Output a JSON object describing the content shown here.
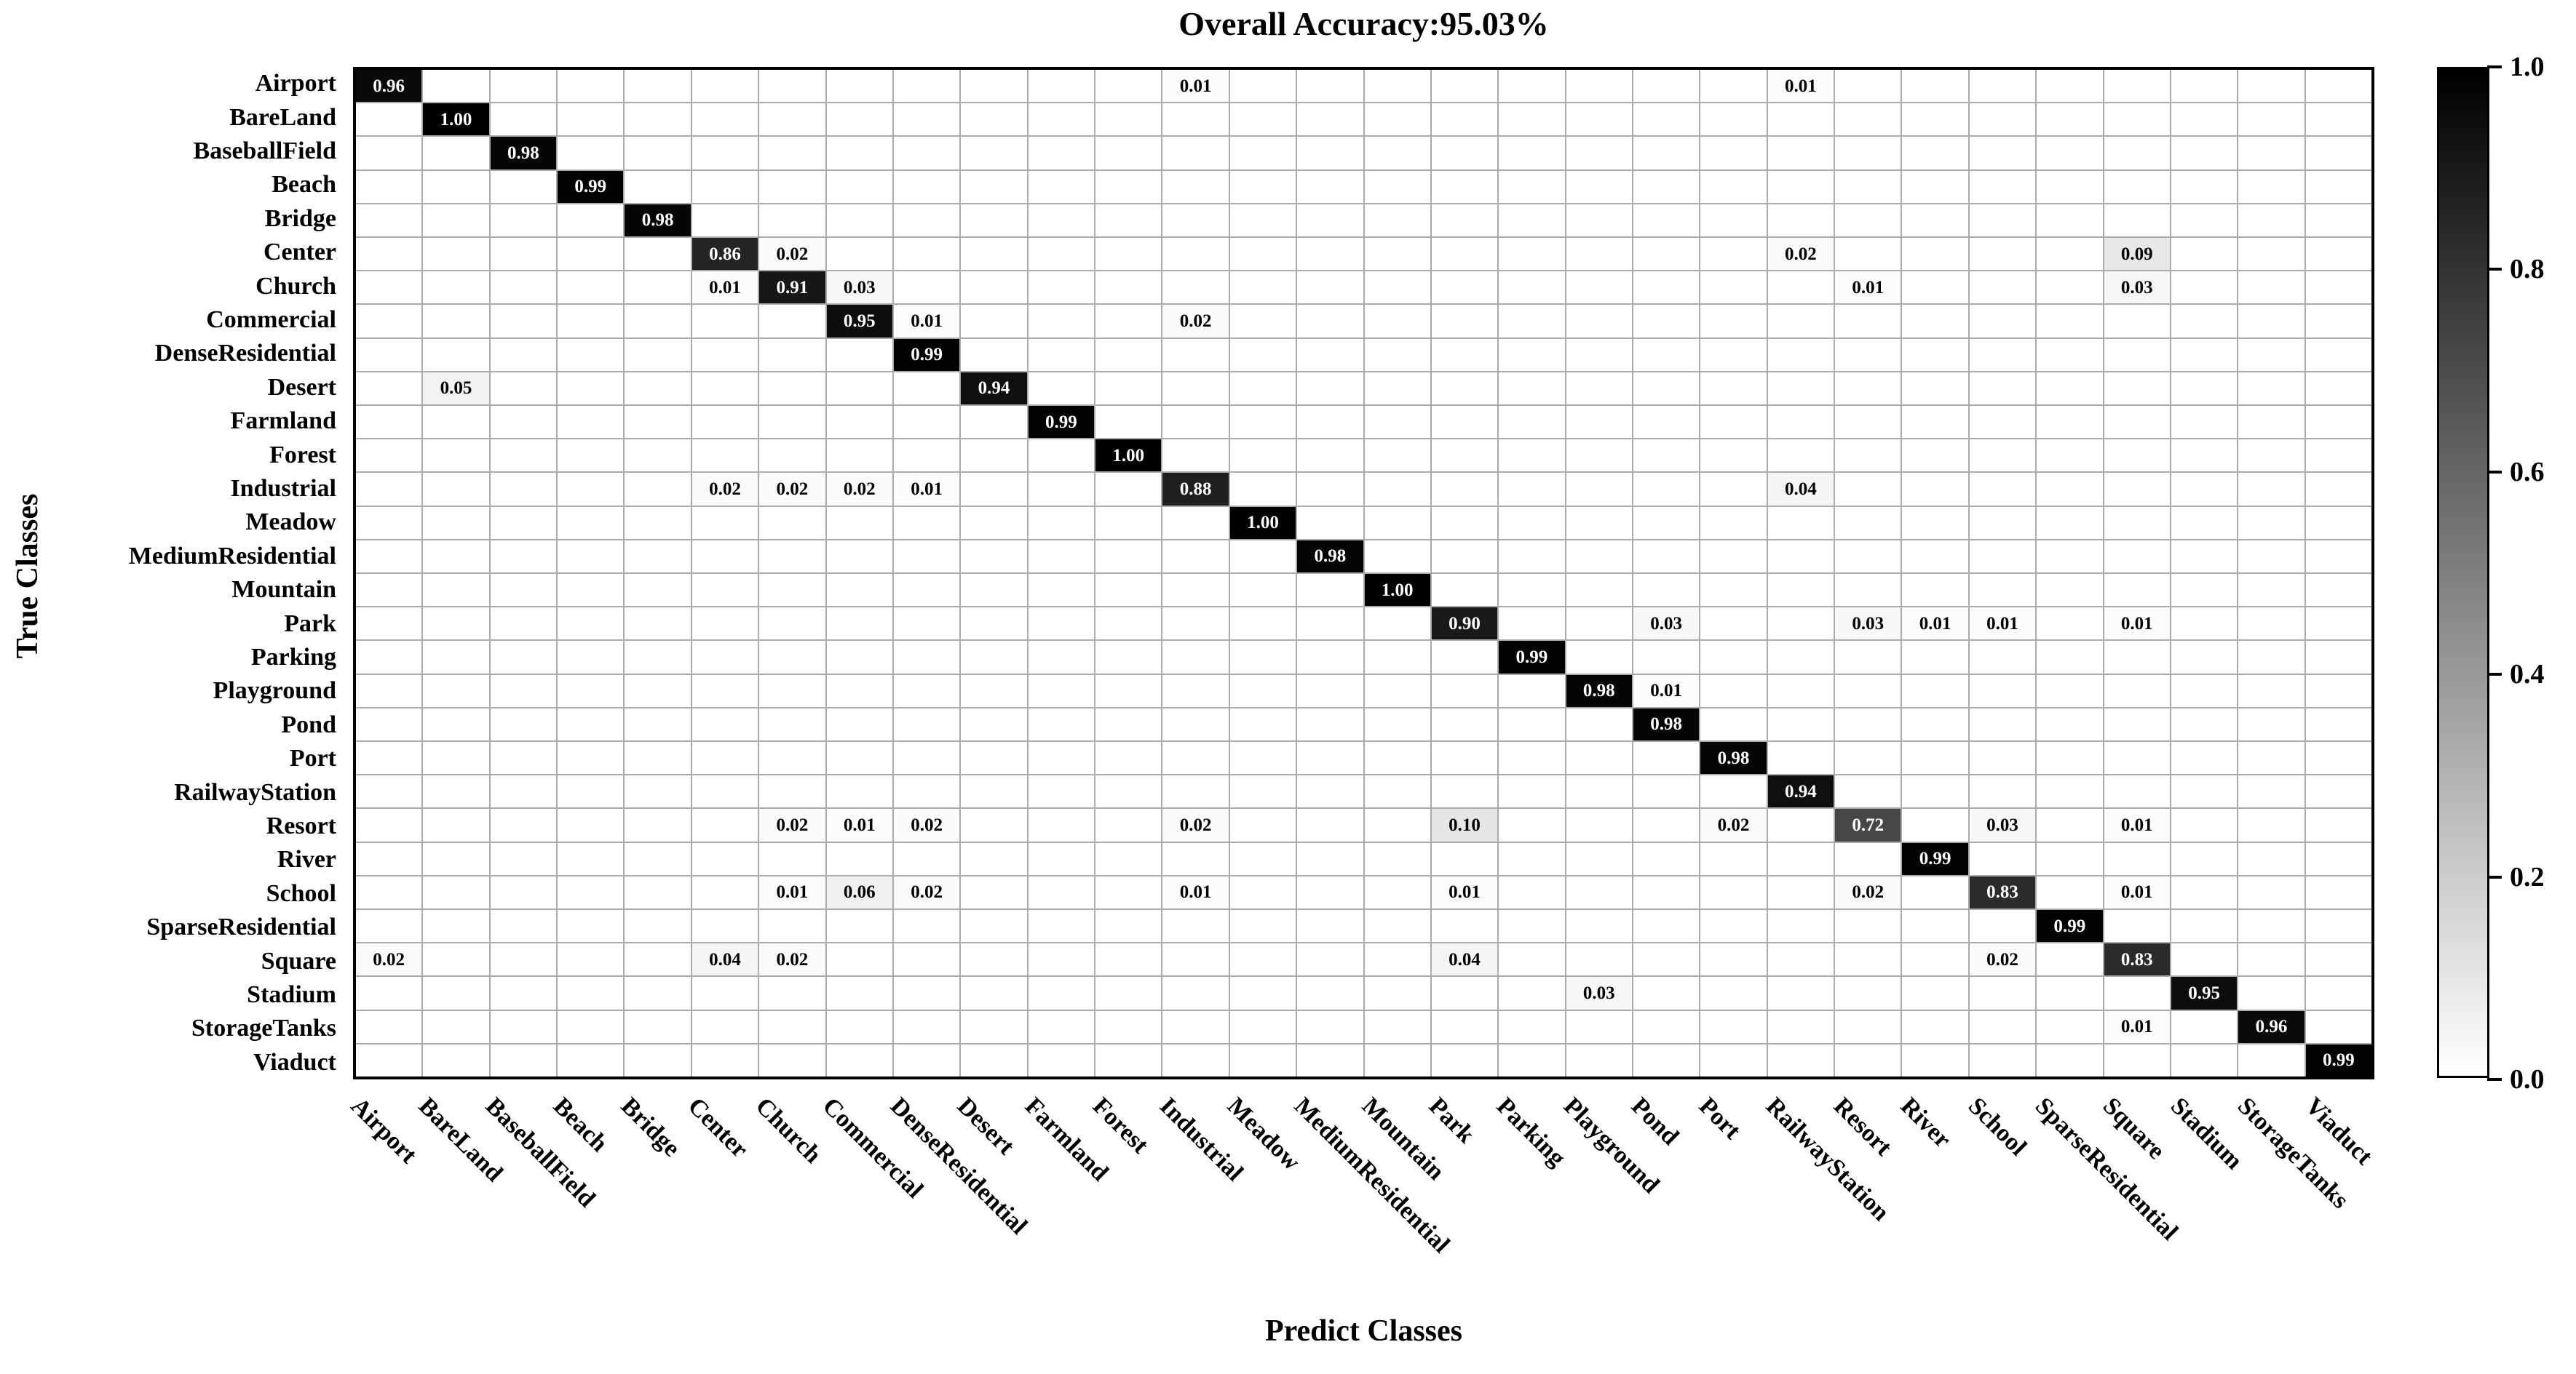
{
  "title": "Overall Accuracy:95.03%",
  "chart_data": {
    "type": "heatmap",
    "subtype": "confusion-matrix",
    "title": "Overall Accuracy:95.03%",
    "xlabel": "Predict Classes",
    "ylabel": "True Classes",
    "classes": [
      "Airport",
      "BareLand",
      "BaseballField",
      "Beach",
      "Bridge",
      "Center",
      "Church",
      "Commercial",
      "DenseResidential",
      "Desert",
      "Farmland",
      "Forest",
      "Industrial",
      "Meadow",
      "MediumResidential",
      "Mountain",
      "Park",
      "Parking",
      "Playground",
      "Pond",
      "Port",
      "RailwayStation",
      "Resort",
      "River",
      "School",
      "SparseResidential",
      "Square",
      "Stadium",
      "StorageTanks",
      "Viaduct"
    ],
    "value_range": [
      0.0,
      1.0
    ],
    "grid": true,
    "legend_position": "right-colorbar",
    "cells": [
      [
        0,
        0,
        "0.96"
      ],
      [
        0,
        12,
        "0.01"
      ],
      [
        0,
        21,
        "0.01"
      ],
      [
        1,
        1,
        "1.00"
      ],
      [
        2,
        2,
        "0.98"
      ],
      [
        3,
        3,
        "0.99"
      ],
      [
        4,
        4,
        "0.98"
      ],
      [
        5,
        5,
        "0.86"
      ],
      [
        5,
        6,
        "0.02"
      ],
      [
        5,
        21,
        "0.02"
      ],
      [
        5,
        26,
        "0.09"
      ],
      [
        6,
        5,
        "0.01"
      ],
      [
        6,
        6,
        "0.91"
      ],
      [
        6,
        7,
        "0.03"
      ],
      [
        6,
        22,
        "0.01"
      ],
      [
        6,
        26,
        "0.03"
      ],
      [
        7,
        7,
        "0.95"
      ],
      [
        7,
        8,
        "0.01"
      ],
      [
        7,
        12,
        "0.02"
      ],
      [
        8,
        8,
        "0.99"
      ],
      [
        9,
        1,
        "0.05"
      ],
      [
        9,
        9,
        "0.94"
      ],
      [
        10,
        10,
        "0.99"
      ],
      [
        11,
        11,
        "1.00"
      ],
      [
        12,
        5,
        "0.02"
      ],
      [
        12,
        6,
        "0.02"
      ],
      [
        12,
        7,
        "0.02"
      ],
      [
        12,
        8,
        "0.01"
      ],
      [
        12,
        12,
        "0.88"
      ],
      [
        12,
        21,
        "0.04"
      ],
      [
        13,
        13,
        "1.00"
      ],
      [
        14,
        14,
        "0.98"
      ],
      [
        15,
        15,
        "1.00"
      ],
      [
        16,
        16,
        "0.90"
      ],
      [
        16,
        19,
        "0.03"
      ],
      [
        16,
        22,
        "0.03"
      ],
      [
        16,
        23,
        "0.01"
      ],
      [
        16,
        24,
        "0.01"
      ],
      [
        16,
        26,
        "0.01"
      ],
      [
        17,
        17,
        "0.99"
      ],
      [
        18,
        18,
        "0.98"
      ],
      [
        18,
        19,
        "0.01"
      ],
      [
        19,
        19,
        "0.98"
      ],
      [
        20,
        20,
        "0.98"
      ],
      [
        21,
        21,
        "0.94"
      ],
      [
        22,
        6,
        "0.02"
      ],
      [
        22,
        7,
        "0.01"
      ],
      [
        22,
        8,
        "0.02"
      ],
      [
        22,
        12,
        "0.02"
      ],
      [
        22,
        16,
        "0.10"
      ],
      [
        22,
        20,
        "0.02"
      ],
      [
        22,
        22,
        "0.72"
      ],
      [
        22,
        24,
        "0.03"
      ],
      [
        22,
        26,
        "0.01"
      ],
      [
        23,
        23,
        "0.99"
      ],
      [
        24,
        6,
        "0.01"
      ],
      [
        24,
        7,
        "0.06"
      ],
      [
        24,
        8,
        "0.02"
      ],
      [
        24,
        12,
        "0.01"
      ],
      [
        24,
        16,
        "0.01"
      ],
      [
        24,
        22,
        "0.02"
      ],
      [
        24,
        24,
        "0.83"
      ],
      [
        24,
        26,
        "0.01"
      ],
      [
        25,
        25,
        "0.99"
      ],
      [
        26,
        0,
        "0.02"
      ],
      [
        26,
        5,
        "0.04"
      ],
      [
        26,
        6,
        "0.02"
      ],
      [
        26,
        16,
        "0.04"
      ],
      [
        26,
        24,
        "0.02"
      ],
      [
        26,
        26,
        "0.83"
      ],
      [
        27,
        18,
        "0.03"
      ],
      [
        27,
        27,
        "0.95"
      ],
      [
        28,
        26,
        "0.01"
      ],
      [
        28,
        28,
        "0.96"
      ],
      [
        29,
        29,
        "0.99"
      ]
    ],
    "colorbar": {
      "min": 0.0,
      "max": 1.0,
      "ticks": [
        "1.0",
        "0.8",
        "0.6",
        "0.4",
        "0.2",
        "0.0"
      ],
      "colormap": "greys-black-high"
    },
    "colors": {
      "high": "#000000",
      "low": "#ffffff",
      "gridline": "#ababab",
      "border": "#000000",
      "background": "#ffffff"
    }
  }
}
